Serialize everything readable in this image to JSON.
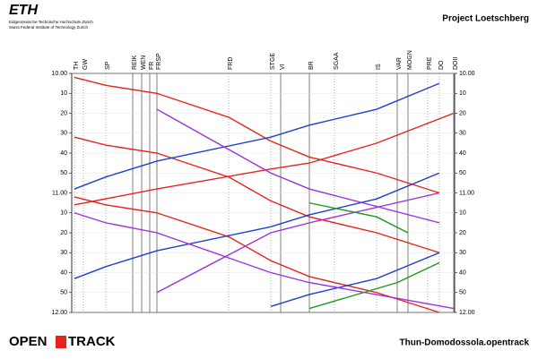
{
  "header": {
    "logo": "ETH",
    "institution_de": "Eidgenössische Technische Hochschule Zürich",
    "institution_en": "Swiss Federal Institute of Technology Zurich",
    "project": "Project Loetschberg"
  },
  "footer": {
    "logo_left": "OPEN",
    "logo_right": "TRACK",
    "file": "Thun-Domodossola.opentrack"
  },
  "chart_data": {
    "type": "train-graph",
    "stations": [
      "TH",
      "GW",
      "SP",
      "REIK",
      "WEN",
      "FR",
      "FRSP",
      "FRD",
      "STGE",
      "VI",
      "BR",
      "SGAA",
      "IS",
      "VAR",
      "MOGN",
      "PRE",
      "DO",
      "DOII"
    ],
    "ylim": [
      0,
      120
    ],
    "yticks": [
      {
        "value": 0,
        "label": "10.00"
      },
      10,
      20,
      30,
      40,
      50,
      {
        "value": 60,
        "label": "11.00"
      },
      {
        "value": 70,
        "label": "10"
      },
      {
        "value": 80,
        "label": "20"
      },
      {
        "value": 90,
        "label": "30"
      },
      {
        "value": 100,
        "label": "40"
      },
      {
        "value": 110,
        "label": "50"
      },
      {
        "value": 120,
        "label": "12.00"
      }
    ],
    "trains": [
      {
        "color": "#e8231d",
        "stations": [
          0,
          2,
          6,
          7,
          8,
          10,
          12,
          16
        ],
        "times": [
          2,
          6,
          10,
          22,
          34,
          42,
          50,
          60
        ]
      },
      {
        "color": "#e8231d",
        "stations": [
          0,
          2,
          6,
          7,
          8,
          10,
          12,
          16
        ],
        "times": [
          32,
          36,
          40,
          52,
          64,
          72,
          80,
          90
        ]
      },
      {
        "color": "#e8231d",
        "stations": [
          0,
          2,
          6,
          7,
          8,
          10,
          12,
          16
        ],
        "times": [
          62,
          66,
          70,
          82,
          94,
          102,
          110,
          120
        ]
      },
      {
        "color": "#e8231d",
        "stations": [
          17,
          12,
          10,
          8,
          6,
          0
        ],
        "times": [
          20,
          35,
          45,
          48,
          58,
          66
        ]
      },
      {
        "color": "#1d3fd0",
        "stations": [
          16,
          12,
          10,
          8,
          6,
          2,
          0
        ],
        "times": [
          5,
          18,
          26,
          32,
          44,
          52,
          58
        ]
      },
      {
        "color": "#1d3fd0",
        "stations": [
          16,
          12,
          10,
          8,
          6,
          2,
          0
        ],
        "times": [
          50,
          63,
          71,
          77,
          89,
          97,
          103
        ]
      },
      {
        "color": "#1d3fd0",
        "stations": [
          16,
          12,
          10,
          8
        ],
        "times": [
          90,
          103,
          111,
          117
        ]
      },
      {
        "color": "#9b30e0",
        "stations": [
          6,
          8,
          10,
          16
        ],
        "times": [
          18,
          50,
          58,
          75
        ]
      },
      {
        "color": "#9b30e0",
        "stations": [
          16,
          10,
          8,
          6
        ],
        "times": [
          60,
          75,
          80,
          110
        ]
      },
      {
        "color": "#9b30e0",
        "stations": [
          0,
          2,
          6,
          8,
          10,
          17
        ],
        "times": [
          70,
          75,
          80,
          100,
          105,
          118
        ]
      },
      {
        "color": "#1a9a1a",
        "stations": [
          10,
          12,
          14
        ],
        "times": [
          65,
          72,
          80
        ]
      },
      {
        "color": "#1a9a1a",
        "stations": [
          16,
          13,
          10
        ],
        "times": [
          95,
          105,
          118
        ]
      }
    ]
  }
}
